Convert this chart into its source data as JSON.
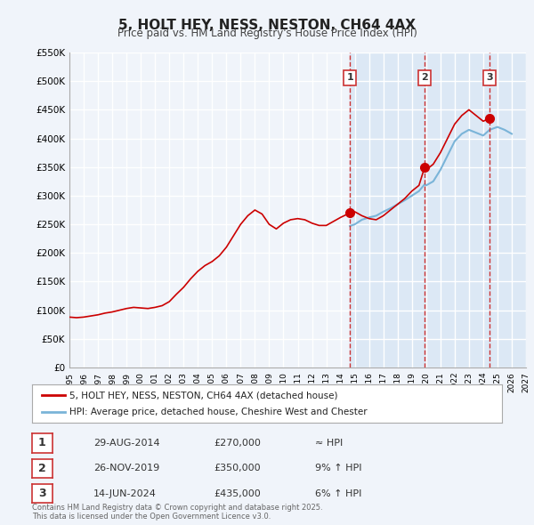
{
  "title": "5, HOLT HEY, NESS, NESTON, CH64 4AX",
  "subtitle": "Price paid vs. HM Land Registry's House Price Index (HPI)",
  "ylim": [
    0,
    550000
  ],
  "yticks": [
    0,
    50000,
    100000,
    150000,
    200000,
    250000,
    300000,
    350000,
    400000,
    450000,
    500000,
    550000
  ],
  "ytick_labels": [
    "£0",
    "£50K",
    "£100K",
    "£150K",
    "£200K",
    "£250K",
    "£300K",
    "£350K",
    "£400K",
    "£450K",
    "£500K",
    "£550K"
  ],
  "xlim_start": 1995.0,
  "xlim_end": 2027.0,
  "xticks": [
    1995,
    1996,
    1997,
    1998,
    1999,
    2000,
    2001,
    2002,
    2003,
    2004,
    2005,
    2006,
    2007,
    2008,
    2009,
    2010,
    2011,
    2012,
    2013,
    2014,
    2015,
    2016,
    2017,
    2018,
    2019,
    2020,
    2021,
    2022,
    2023,
    2024,
    2025,
    2026,
    2027
  ],
  "bg_color": "#f0f4fa",
  "plot_bg_color": "#f0f4fa",
  "grid_color": "#ffffff",
  "line_color_red": "#cc0000",
  "line_color_blue": "#7ab4d8",
  "marker_color": "#cc0000",
  "vline_color": "#cc3333",
  "shade_color": "#dce8f5",
  "legend_label_red": "5, HOLT HEY, NESS, NESTON, CH64 4AX (detached house)",
  "legend_label_blue": "HPI: Average price, detached house, Cheshire West and Chester",
  "events": [
    {
      "num": 1,
      "date": "29-AUG-2014",
      "price": 270000,
      "note": "≈ HPI",
      "x": 2014.66
    },
    {
      "num": 2,
      "date": "26-NOV-2019",
      "price": 350000,
      "note": "9% ↑ HPI",
      "x": 2019.9
    },
    {
      "num": 3,
      "date": "14-JUN-2024",
      "price": 435000,
      "note": "6% ↑ HPI",
      "x": 2024.45
    }
  ],
  "footer": "Contains HM Land Registry data © Crown copyright and database right 2025.\nThis data is licensed under the Open Government Licence v3.0.",
  "hpi_red_x": [
    1995.0,
    1995.5,
    1996.0,
    1996.5,
    1997.0,
    1997.5,
    1998.0,
    1998.5,
    1999.0,
    1999.5,
    2000.0,
    2000.5,
    2001.0,
    2001.5,
    2002.0,
    2002.5,
    2003.0,
    2003.5,
    2004.0,
    2004.5,
    2005.0,
    2005.5,
    2006.0,
    2006.5,
    2007.0,
    2007.5,
    2008.0,
    2008.5,
    2009.0,
    2009.5,
    2010.0,
    2010.5,
    2011.0,
    2011.5,
    2012.0,
    2012.5,
    2013.0,
    2013.5,
    2014.0,
    2014.5,
    2014.66,
    2015.0,
    2015.5,
    2016.0,
    2016.5,
    2017.0,
    2017.5,
    2018.0,
    2018.5,
    2019.0,
    2019.5,
    2019.9,
    2020.0,
    2020.5,
    2021.0,
    2021.5,
    2022.0,
    2022.5,
    2023.0,
    2023.5,
    2024.0,
    2024.45
  ],
  "hpi_red_y": [
    88000,
    87000,
    88000,
    90000,
    92000,
    95000,
    97000,
    100000,
    103000,
    105000,
    104000,
    103000,
    105000,
    108000,
    115000,
    128000,
    140000,
    155000,
    168000,
    178000,
    185000,
    195000,
    210000,
    230000,
    250000,
    265000,
    275000,
    268000,
    250000,
    242000,
    252000,
    258000,
    260000,
    258000,
    252000,
    248000,
    248000,
    255000,
    262000,
    268000,
    270000,
    272000,
    265000,
    260000,
    258000,
    265000,
    275000,
    285000,
    295000,
    308000,
    318000,
    350000,
    345000,
    355000,
    375000,
    400000,
    425000,
    440000,
    450000,
    440000,
    430000,
    435000
  ],
  "hpi_blue_x": [
    2014.66,
    2015.0,
    2015.5,
    2016.0,
    2016.5,
    2017.0,
    2017.5,
    2018.0,
    2018.5,
    2019.0,
    2019.5,
    2019.9,
    2020.0,
    2020.5,
    2021.0,
    2021.5,
    2022.0,
    2022.5,
    2023.0,
    2023.5,
    2024.0,
    2024.45,
    2025.0,
    2025.5,
    2026.0
  ],
  "hpi_blue_y": [
    247000,
    250000,
    258000,
    262000,
    265000,
    272000,
    278000,
    285000,
    292000,
    300000,
    308000,
    320000,
    318000,
    325000,
    345000,
    370000,
    395000,
    408000,
    415000,
    410000,
    405000,
    415000,
    420000,
    415000,
    408000
  ],
  "shade_x_start": 2014.66,
  "shade_x_end": 2027.0
}
